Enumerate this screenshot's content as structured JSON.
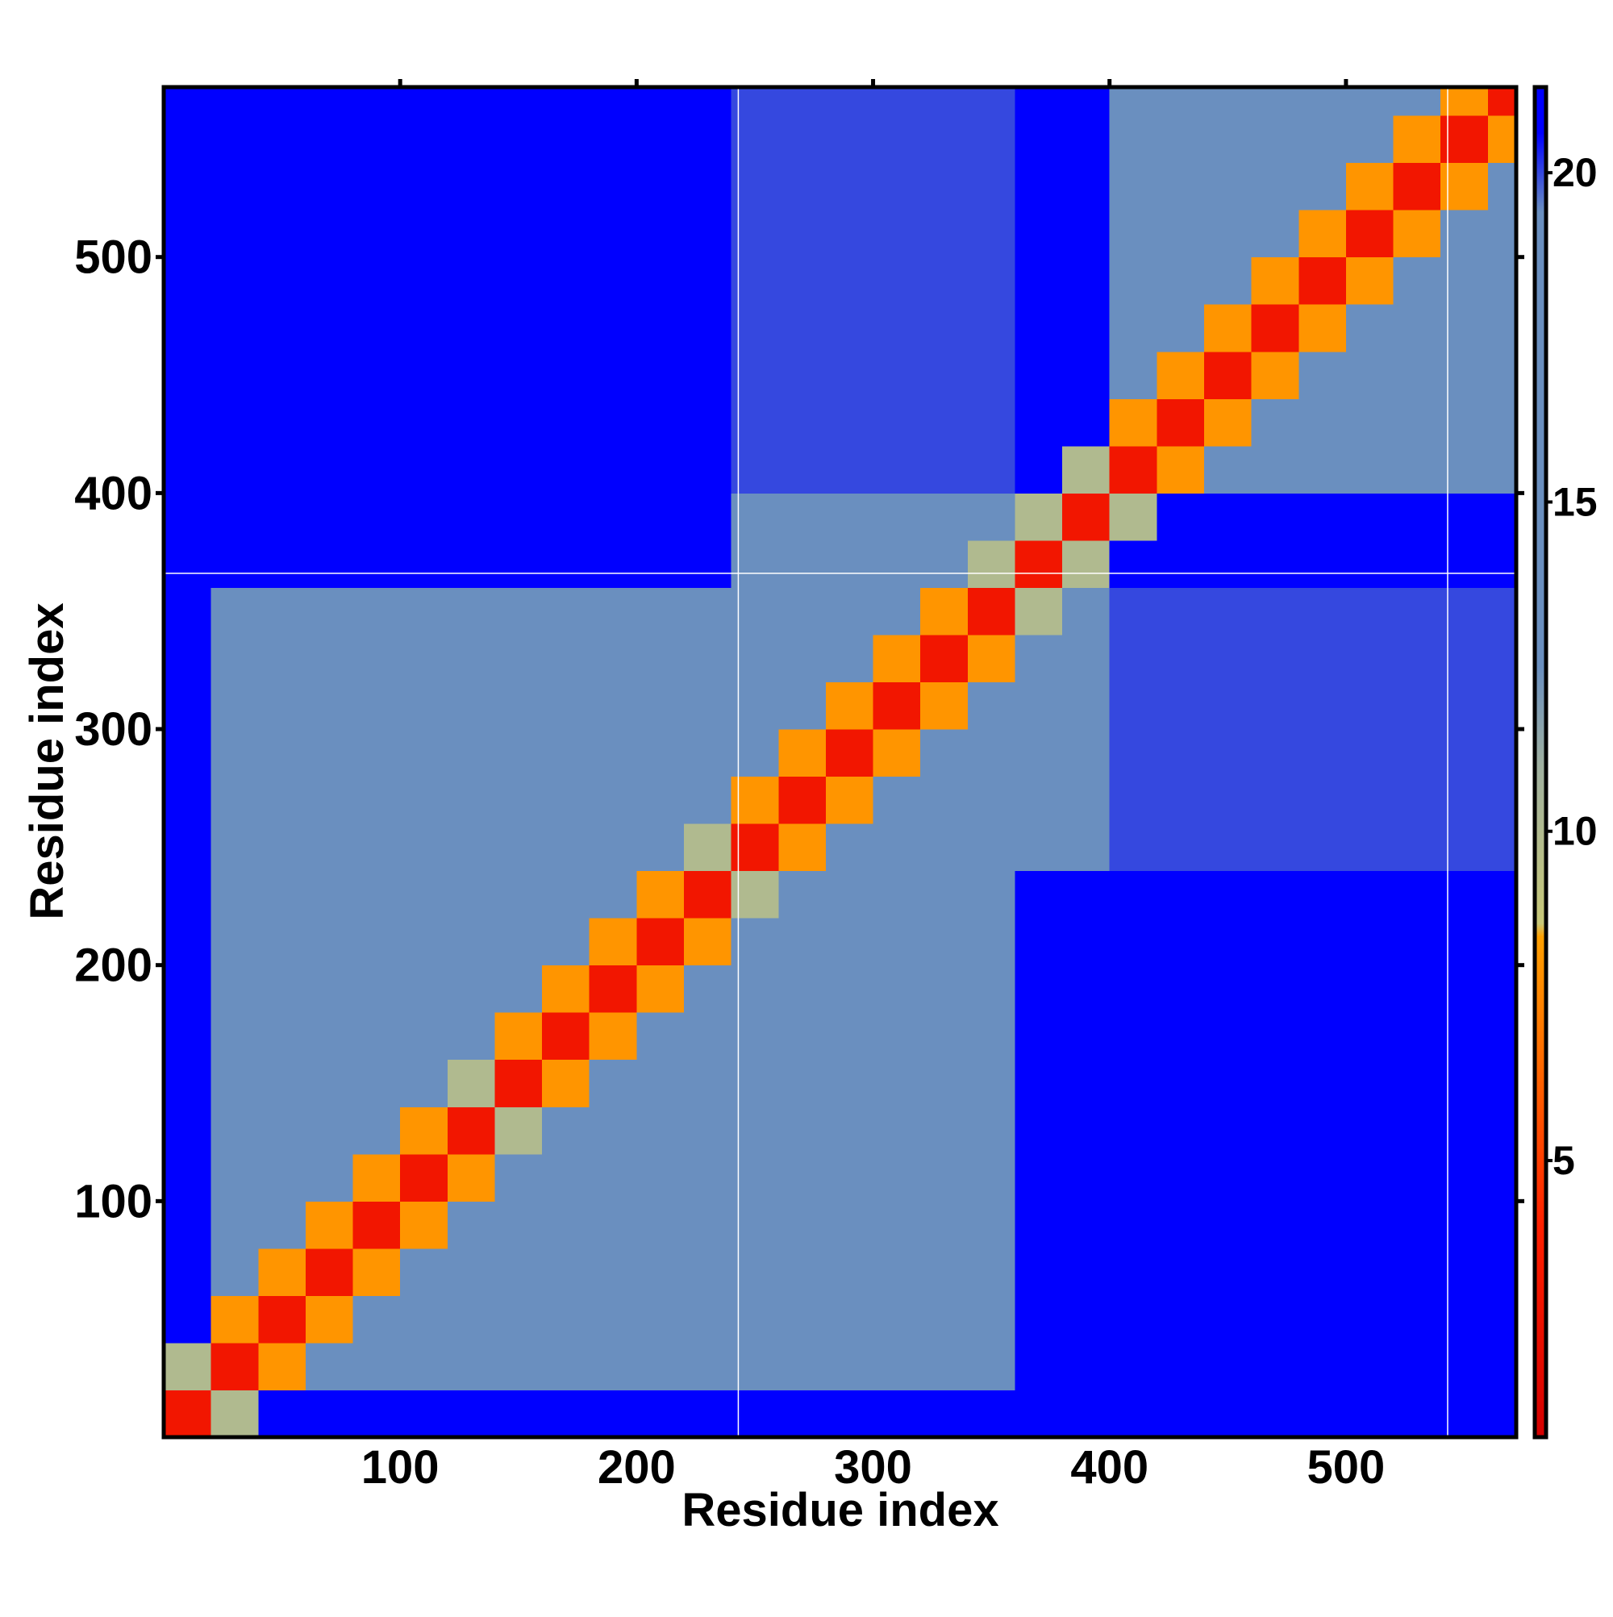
{
  "chart_data": {
    "type": "heatmap",
    "xlabel": "Residue index",
    "ylabel": "Residue index",
    "x": [
      10,
      30,
      50,
      70,
      90,
      110,
      130,
      150,
      170,
      190,
      210,
      230,
      250,
      270,
      290,
      310,
      330,
      350,
      370,
      390,
      410,
      430,
      450,
      470,
      490,
      510,
      530,
      550,
      570
    ],
    "y": [
      10,
      30,
      50,
      70,
      90,
      110,
      130,
      150,
      170,
      190,
      210,
      230,
      250,
      270,
      290,
      310,
      330,
      350,
      370,
      390,
      410,
      430,
      450,
      470,
      490,
      510,
      530,
      550,
      570
    ],
    "z": [
      [
        3,
        10,
        21,
        21,
        21,
        21,
        21,
        21,
        21,
        21,
        21,
        21,
        21,
        21,
        21,
        21,
        21,
        21,
        21,
        21,
        21,
        21,
        21,
        21,
        21,
        21,
        21,
        21,
        21
      ],
      [
        10,
        3,
        8,
        13,
        13,
        13,
        13,
        18,
        18,
        18,
        18,
        18,
        19,
        19,
        19,
        19,
        19,
        19,
        21,
        21,
        21,
        21,
        21,
        21,
        21,
        21,
        21,
        21,
        21
      ],
      [
        21,
        8,
        3,
        8,
        13,
        13,
        13,
        18,
        18,
        18,
        18,
        18,
        19,
        19,
        19,
        19,
        19,
        19,
        21,
        21,
        21,
        21,
        21,
        21,
        21,
        21,
        21,
        21,
        21
      ],
      [
        21,
        13,
        8,
        3,
        8,
        13,
        13,
        18,
        18,
        18,
        18,
        18,
        19,
        19,
        19,
        19,
        19,
        19,
        21,
        21,
        21,
        21,
        21,
        21,
        21,
        21,
        21,
        21,
        21
      ],
      [
        21,
        13,
        13,
        8,
        3,
        8,
        13,
        18,
        18,
        18,
        18,
        18,
        19,
        19,
        19,
        19,
        19,
        19,
        21,
        21,
        21,
        21,
        21,
        21,
        21,
        21,
        21,
        21,
        21
      ],
      [
        21,
        13,
        13,
        13,
        8,
        3,
        8,
        18,
        18,
        18,
        18,
        18,
        19,
        19,
        19,
        19,
        19,
        19,
        21,
        21,
        21,
        21,
        21,
        21,
        21,
        21,
        21,
        21,
        21
      ],
      [
        21,
        13,
        13,
        13,
        13,
        8,
        3,
        10,
        18,
        18,
        18,
        18,
        19,
        19,
        19,
        19,
        19,
        19,
        21,
        21,
        21,
        21,
        21,
        21,
        21,
        21,
        21,
        21,
        21
      ],
      [
        21,
        18,
        18,
        18,
        18,
        18,
        10,
        3,
        8,
        13,
        13,
        13,
        16,
        16,
        16,
        16,
        16,
        16,
        21,
        21,
        21,
        21,
        21,
        21,
        21,
        21,
        21,
        21,
        21
      ],
      [
        21,
        18,
        18,
        18,
        18,
        18,
        18,
        8,
        3,
        8,
        13,
        13,
        16,
        16,
        16,
        16,
        16,
        16,
        21,
        21,
        21,
        21,
        21,
        21,
        21,
        21,
        21,
        21,
        21
      ],
      [
        21,
        18,
        18,
        18,
        18,
        18,
        18,
        13,
        8,
        3,
        8,
        13,
        16,
        16,
        16,
        16,
        16,
        16,
        21,
        21,
        21,
        21,
        21,
        21,
        21,
        21,
        21,
        21,
        21
      ],
      [
        21,
        18,
        18,
        18,
        18,
        18,
        18,
        13,
        13,
        8,
        3,
        8,
        16,
        16,
        16,
        16,
        16,
        16,
        21,
        21,
        21,
        21,
        21,
        21,
        21,
        21,
        21,
        21,
        21
      ],
      [
        21,
        18,
        18,
        18,
        18,
        18,
        18,
        13,
        13,
        13,
        8,
        3,
        10,
        16,
        16,
        16,
        16,
        16,
        21,
        21,
        21,
        21,
        21,
        21,
        21,
        21,
        21,
        21,
        21
      ],
      [
        21,
        19,
        19,
        19,
        19,
        19,
        19,
        16,
        16,
        16,
        16,
        10,
        3,
        8,
        13,
        13,
        13,
        13,
        19,
        19,
        20,
        20,
        20,
        20,
        20,
        20,
        20,
        20,
        20
      ],
      [
        21,
        19,
        19,
        19,
        19,
        19,
        19,
        16,
        16,
        16,
        16,
        16,
        8,
        3,
        8,
        13,
        13,
        13,
        19,
        19,
        20,
        20,
        20,
        20,
        20,
        20,
        20,
        20,
        20
      ],
      [
        21,
        19,
        19,
        19,
        19,
        19,
        19,
        16,
        16,
        16,
        16,
        16,
        13,
        8,
        3,
        8,
        13,
        13,
        19,
        19,
        20,
        20,
        20,
        20,
        20,
        20,
        20,
        20,
        20
      ],
      [
        21,
        19,
        19,
        19,
        19,
        19,
        19,
        16,
        16,
        16,
        16,
        16,
        13,
        13,
        8,
        3,
        8,
        13,
        19,
        19,
        20,
        20,
        20,
        20,
        20,
        20,
        20,
        20,
        20
      ],
      [
        21,
        19,
        19,
        19,
        19,
        19,
        19,
        16,
        16,
        16,
        16,
        16,
        13,
        13,
        13,
        8,
        3,
        8,
        19,
        19,
        20,
        20,
        20,
        20,
        20,
        20,
        20,
        20,
        20
      ],
      [
        21,
        19,
        19,
        19,
        19,
        19,
        19,
        16,
        16,
        16,
        16,
        16,
        13,
        13,
        13,
        13,
        8,
        3,
        10,
        19,
        20,
        20,
        20,
        20,
        20,
        20,
        20,
        20,
        20
      ],
      [
        21,
        21,
        21,
        21,
        21,
        21,
        21,
        21,
        21,
        21,
        21,
        21,
        19,
        19,
        19,
        19,
        19,
        10,
        3,
        10,
        21,
        21,
        21,
        21,
        21,
        21,
        21,
        21,
        21
      ],
      [
        21,
        21,
        21,
        21,
        21,
        21,
        21,
        21,
        21,
        21,
        21,
        21,
        19,
        19,
        19,
        19,
        19,
        19,
        10,
        3,
        10,
        21,
        21,
        21,
        21,
        21,
        21,
        21,
        21
      ],
      [
        21,
        21,
        21,
        21,
        21,
        21,
        21,
        21,
        21,
        21,
        21,
        21,
        20,
        20,
        20,
        20,
        20,
        20,
        21,
        10,
        3,
        8,
        13,
        13,
        13,
        13,
        13,
        13,
        13
      ],
      [
        21,
        21,
        21,
        21,
        21,
        21,
        21,
        21,
        21,
        21,
        21,
        21,
        20,
        20,
        20,
        20,
        20,
        20,
        21,
        21,
        8,
        3,
        8,
        13,
        13,
        13,
        13,
        13,
        13
      ],
      [
        21,
        21,
        21,
        21,
        21,
        21,
        21,
        21,
        21,
        21,
        21,
        21,
        20,
        20,
        20,
        20,
        20,
        20,
        21,
        21,
        13,
        8,
        3,
        8,
        13,
        13,
        13,
        13,
        13
      ],
      [
        21,
        21,
        21,
        21,
        21,
        21,
        21,
        21,
        21,
        21,
        21,
        21,
        20,
        20,
        20,
        20,
        20,
        20,
        21,
        21,
        13,
        13,
        8,
        3,
        8,
        13,
        13,
        13,
        13
      ],
      [
        21,
        21,
        21,
        21,
        21,
        21,
        21,
        21,
        21,
        21,
        21,
        21,
        20,
        20,
        20,
        20,
        20,
        20,
        21,
        21,
        13,
        13,
        13,
        8,
        3,
        8,
        13,
        13,
        13
      ],
      [
        21,
        21,
        21,
        21,
        21,
        21,
        21,
        21,
        21,
        21,
        21,
        21,
        20,
        20,
        20,
        20,
        20,
        20,
        21,
        21,
        13,
        13,
        13,
        13,
        8,
        3,
        8,
        13,
        13
      ],
      [
        21,
        21,
        21,
        21,
        21,
        21,
        21,
        21,
        21,
        21,
        21,
        21,
        20,
        20,
        20,
        20,
        20,
        20,
        21,
        21,
        13,
        13,
        13,
        13,
        13,
        8,
        3,
        8,
        13
      ],
      [
        21,
        21,
        21,
        21,
        21,
        21,
        21,
        21,
        21,
        21,
        21,
        21,
        20,
        20,
        20,
        20,
        20,
        20,
        21,
        21,
        13,
        13,
        13,
        13,
        13,
        13,
        8,
        3,
        8
      ],
      [
        21,
        21,
        21,
        21,
        21,
        21,
        21,
        21,
        21,
        21,
        21,
        21,
        20,
        20,
        20,
        20,
        20,
        20,
        21,
        21,
        13,
        13,
        13,
        13,
        13,
        13,
        13,
        8,
        3
      ]
    ],
    "xlim": [
      0,
      572
    ],
    "ylim": [
      0,
      572
    ],
    "xticks": [
      100,
      200,
      300,
      400,
      500
    ],
    "yticks": [
      100,
      200,
      300,
      400,
      500
    ],
    "zlim": [
      0.8,
      21.3
    ],
    "zticks": [
      5,
      10,
      15,
      20
    ],
    "colorscale": [
      {
        "value": 0.8,
        "color": "#d40000"
      },
      {
        "value": 4,
        "color": "#ff2000"
      },
      {
        "value": 6.5,
        "color": "#ff6a00"
      },
      {
        "value": 8.4,
        "color": "#ffa000"
      },
      {
        "value": 8.6,
        "color": "#c8c878"
      },
      {
        "value": 11,
        "color": "#9fb0a0"
      },
      {
        "value": 12.5,
        "color": "#6a8fbf"
      },
      {
        "value": 19.4,
        "color": "#6a8fbf"
      },
      {
        "value": 20.6,
        "color": "#0000ff"
      },
      {
        "value": 21.3,
        "color": "#0000ff"
      }
    ],
    "gap_lines": {
      "x": [
        243,
        543
      ],
      "y": [
        366
      ]
    }
  }
}
